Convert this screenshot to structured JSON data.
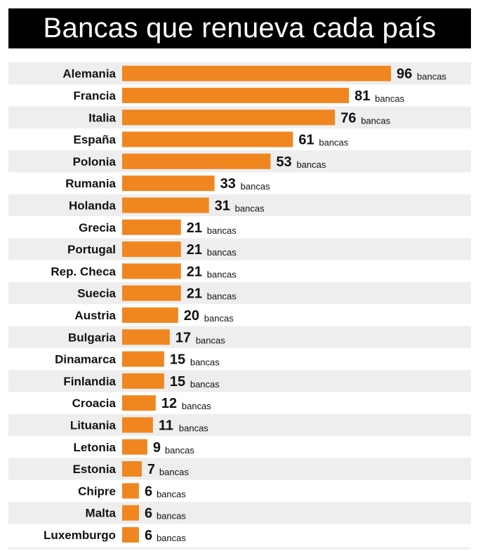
{
  "title": "Bancas que renueva cada país",
  "unit_label": "bancas",
  "colors": {
    "bar": "#f0861f",
    "stripe": "#eeeeee",
    "background": "#ffffff",
    "title_bg": "#000000",
    "title_text": "#ffffff"
  },
  "chart_data": {
    "type": "bar",
    "orientation": "horizontal",
    "title": "Bancas que renueva cada país",
    "xlabel": "",
    "ylabel": "",
    "grid": false,
    "legend": "none",
    "categories": [
      "Alemania",
      "Francia",
      "Italia",
      "España",
      "Polonia",
      "Rumania",
      "Holanda",
      "Grecia",
      "Portugal",
      "Rep. Checa",
      "Suecia",
      "Austria",
      "Bulgaria",
      "Dinamarca",
      "Finlandia",
      "Croacia",
      "Lituania",
      "Letonia",
      "Estonia",
      "Chipre",
      "Malta",
      "Luxemburgo"
    ],
    "values": [
      96,
      81,
      76,
      61,
      53,
      33,
      31,
      21,
      21,
      21,
      21,
      20,
      17,
      15,
      15,
      12,
      11,
      9,
      7,
      6,
      6,
      6
    ],
    "xlim": [
      0,
      96
    ],
    "data_label_suffix": "bancas"
  }
}
